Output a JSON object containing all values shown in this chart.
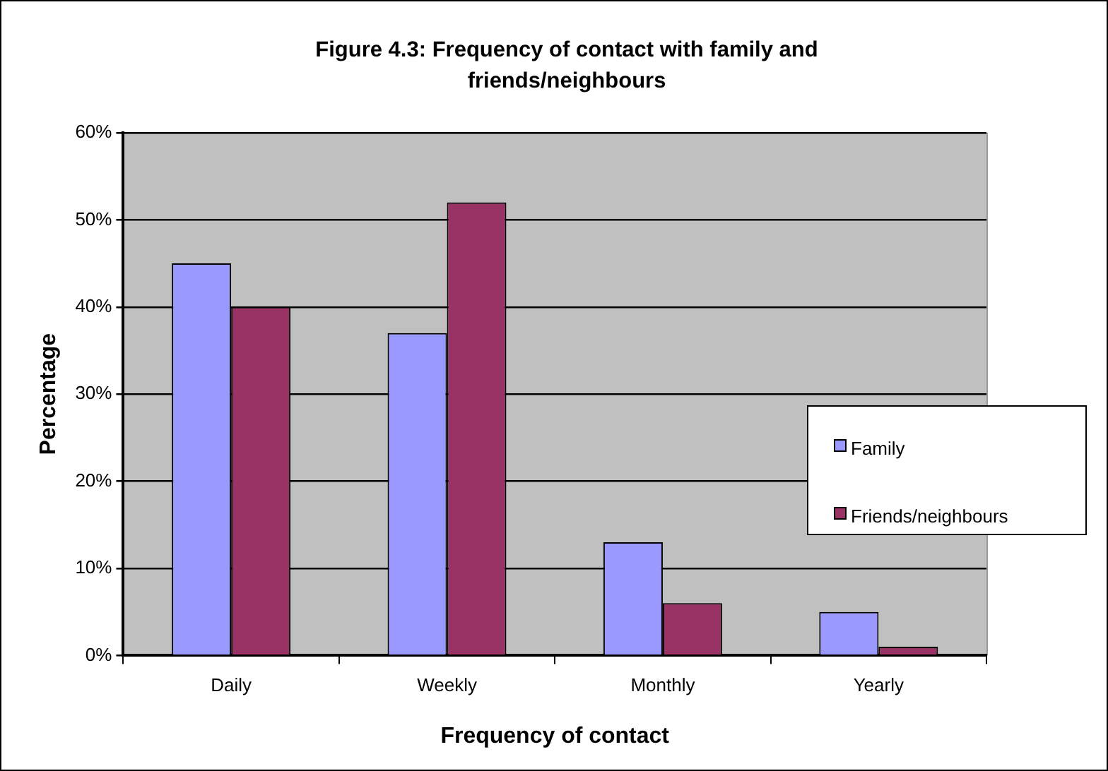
{
  "chart_data": {
    "type": "bar",
    "title": "Figure 4.3: Frequency of contact with family and friends/neighbours",
    "xlabel": "Frequency of contact",
    "ylabel": "Percentage",
    "categories": [
      "Daily",
      "Weekly",
      "Monthly",
      "Yearly"
    ],
    "series": [
      {
        "name": "Family",
        "color": "#9999ff",
        "values": [
          45,
          37,
          13,
          5
        ]
      },
      {
        "name": "Friends/neighbours",
        "color": "#993366",
        "values": [
          40,
          52,
          6,
          1
        ]
      }
    ],
    "ylim": [
      0,
      60
    ],
    "yticks": [
      {
        "value": 0,
        "label": "0%"
      },
      {
        "value": 10,
        "label": "10%"
      },
      {
        "value": 20,
        "label": "20%"
      },
      {
        "value": 30,
        "label": "30%"
      },
      {
        "value": 40,
        "label": "40%"
      },
      {
        "value": 50,
        "label": "50%"
      },
      {
        "value": 60,
        "label": "60%"
      }
    ],
    "grid": "y",
    "legend": "right"
  }
}
